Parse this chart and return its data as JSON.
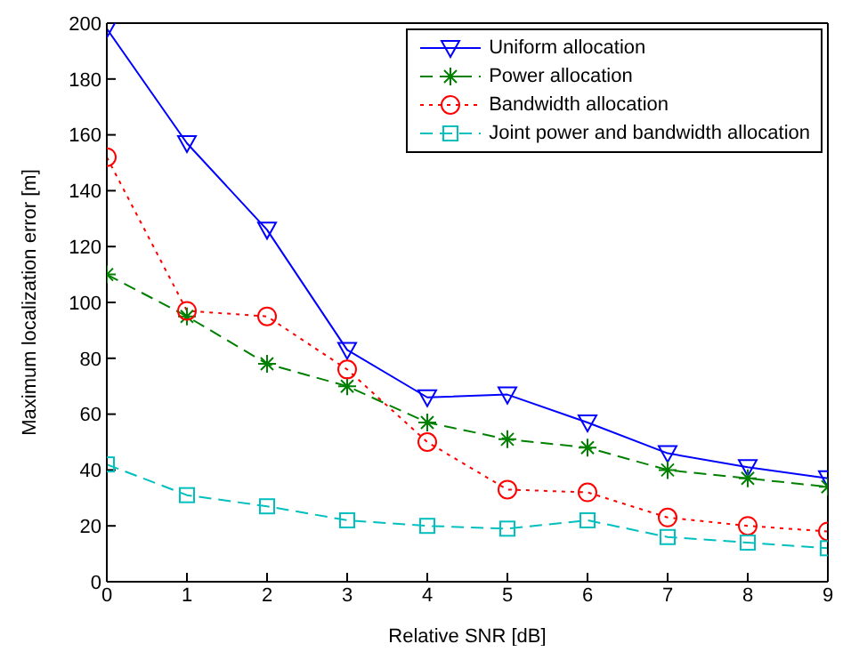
{
  "chart_data": {
    "type": "line",
    "xlabel": "Relative SNR [dB]",
    "ylabel": "Maximum localization error [m]",
    "x": [
      0,
      1,
      2,
      3,
      4,
      5,
      6,
      7,
      8,
      9
    ],
    "xlim": [
      0,
      9
    ],
    "xticks": [
      0,
      1,
      2,
      3,
      4,
      5,
      6,
      7,
      8,
      9
    ],
    "ylim": [
      0,
      200
    ],
    "yticks": [
      0,
      20,
      40,
      60,
      80,
      100,
      120,
      140,
      160,
      180,
      200
    ],
    "grid": false,
    "legend": "top right",
    "series": [
      {
        "name": "Uniform allocation",
        "color": "#0000ff",
        "marker": "triangle",
        "line_style": "solid",
        "values": [
          198,
          157,
          126,
          83,
          66,
          67,
          57,
          46,
          41,
          37
        ]
      },
      {
        "name": "Power allocation",
        "color": "#008000",
        "marker": "cross",
        "line_style": "dashed",
        "values": [
          110,
          95,
          78,
          70,
          57,
          51,
          48,
          40,
          37,
          34
        ]
      },
      {
        "name": "Bandwidth allocation",
        "color": "#ff0000",
        "marker": "circle",
        "line_style": "dotted",
        "values": [
          152,
          97,
          95,
          76,
          50,
          33,
          32,
          23,
          20,
          18
        ]
      },
      {
        "name": "Joint power and bandwidth allocation",
        "color": "#00bfbf",
        "marker": "square",
        "line_style": "dashed",
        "values": [
          42,
          31,
          27,
          22,
          20,
          19,
          22,
          16,
          14,
          12
        ]
      }
    ]
  }
}
